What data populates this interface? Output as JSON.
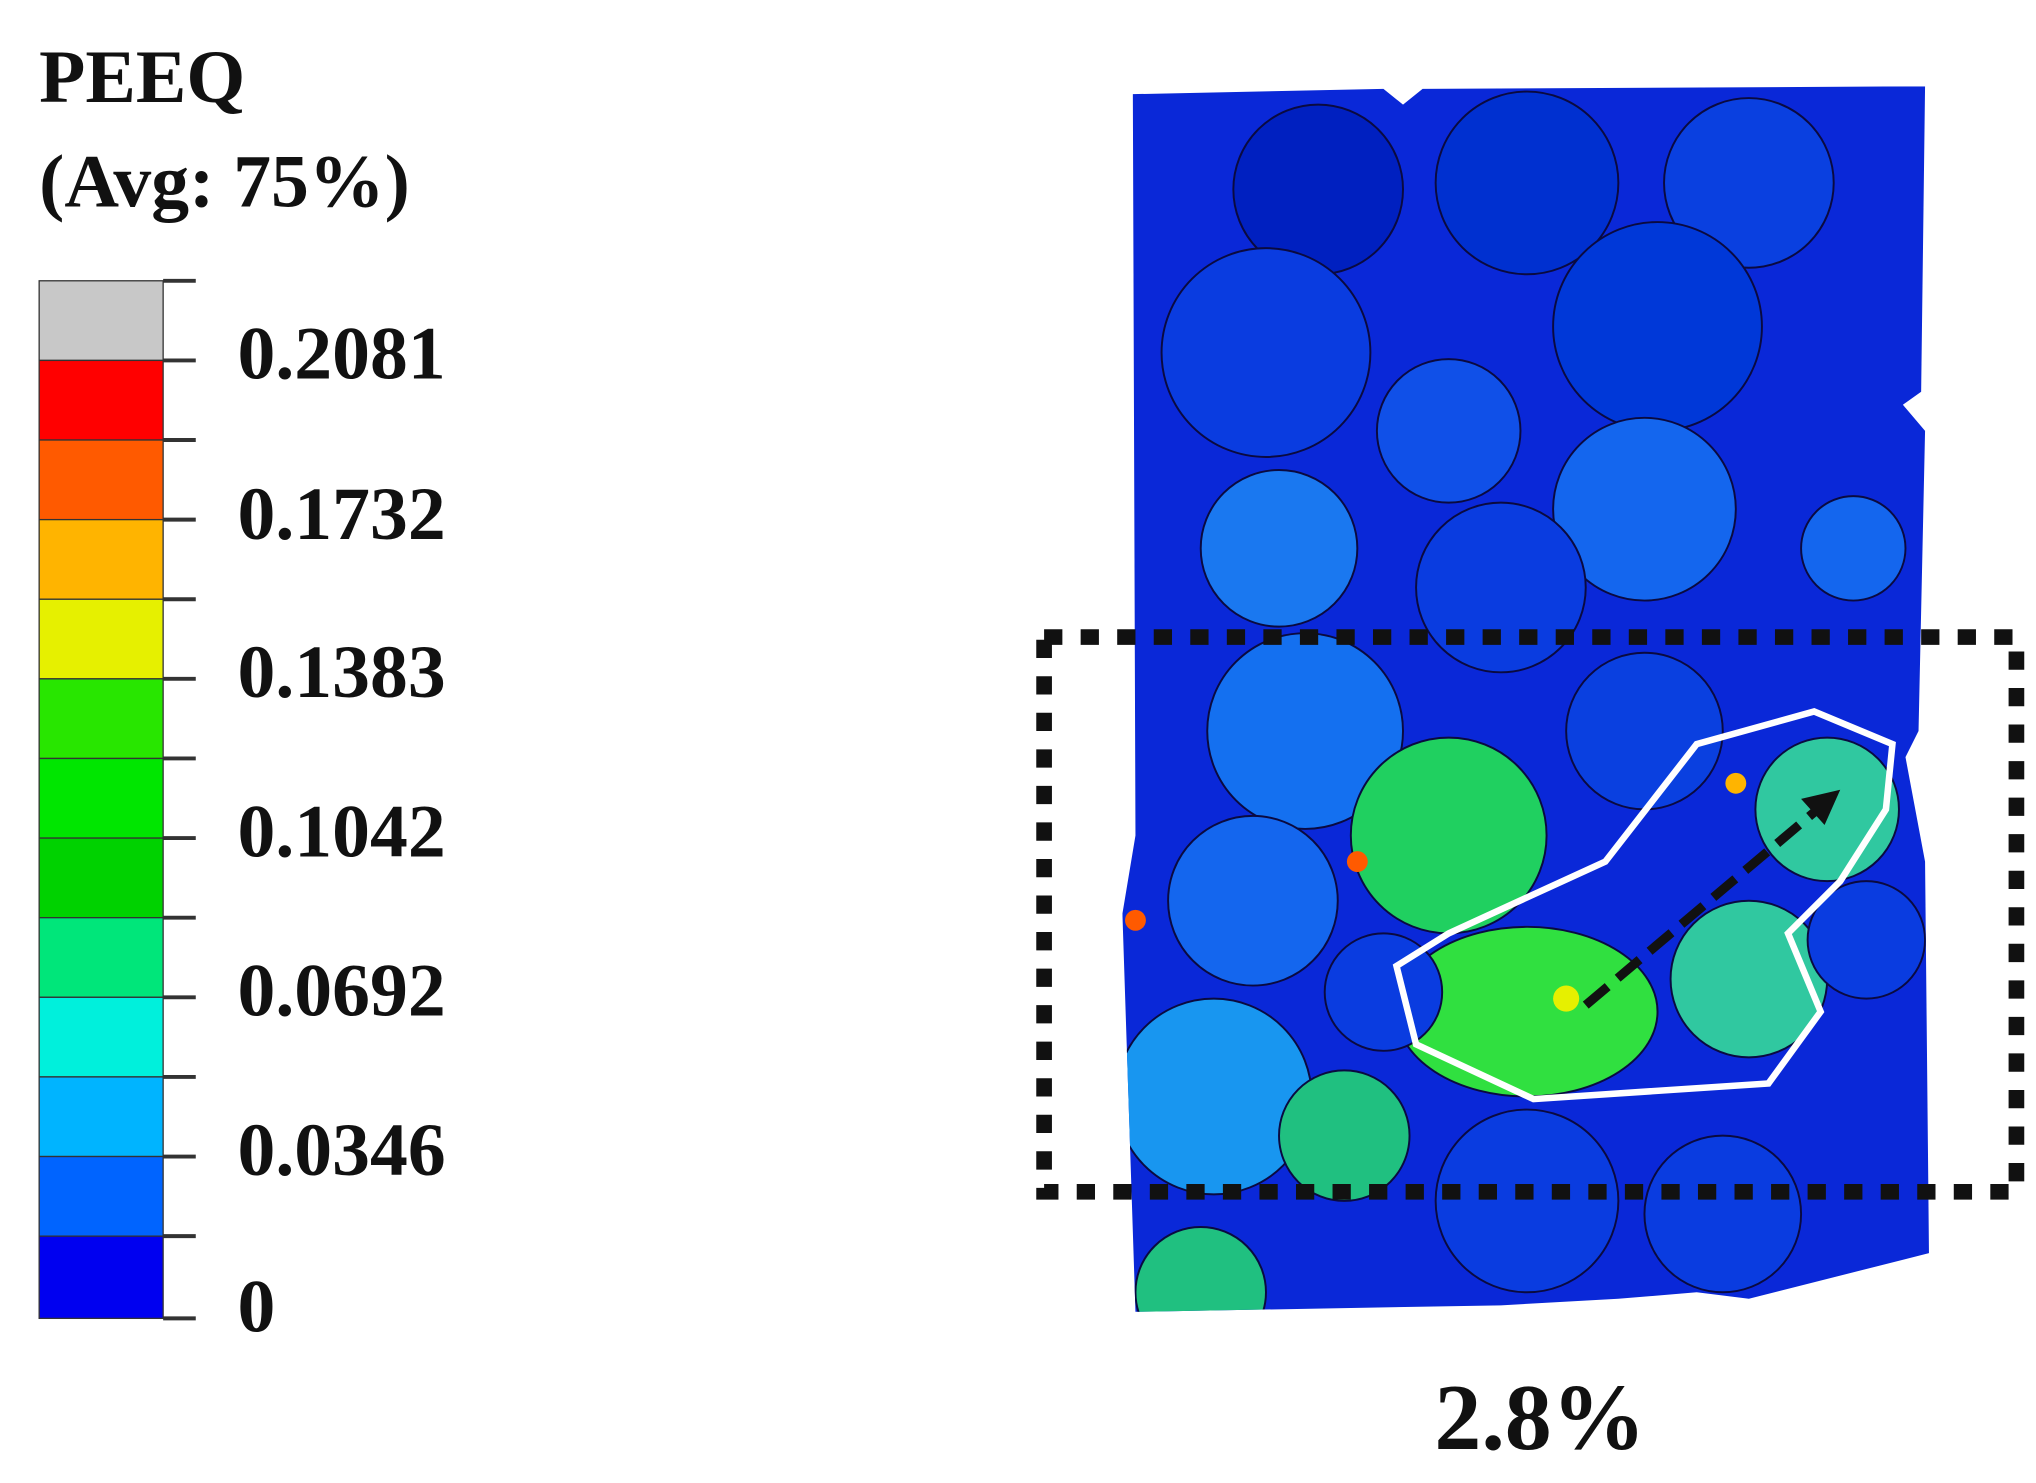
{
  "legend": {
    "title": "PEEQ",
    "subtitle": "(Avg: 75%)",
    "tick_labels": [
      "0.2081",
      "0.1732",
      "0.1383",
      "0.1042",
      "0.0692",
      "0.0346",
      "0"
    ]
  },
  "caption": "2.8%"
}
